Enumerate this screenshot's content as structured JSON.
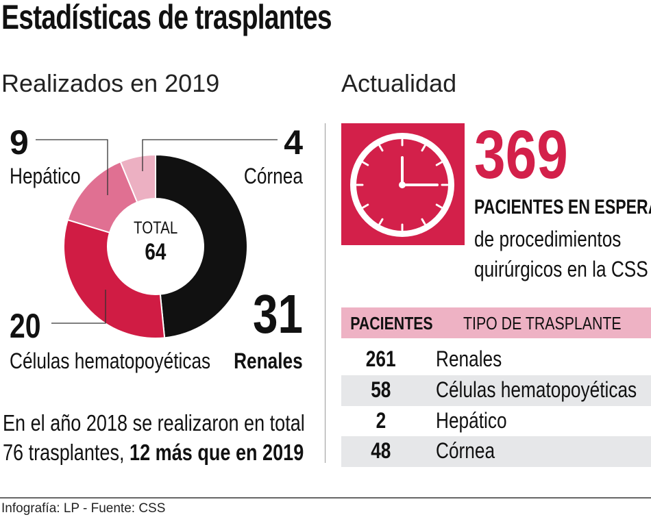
{
  "title": "Estadísticas de trasplantes",
  "left": {
    "subtitle": "Realizados en 2019",
    "total_label": "TOTAL",
    "total_value": "64",
    "note_line1": "En el año 2018 se realizaron en total",
    "note_line2_regular": "76 trasplantes, ",
    "note_line2_bold": "12 más que en 2019"
  },
  "right": {
    "subtitle": "Actualidad",
    "big_number": "369",
    "big_label": "PACIENTES EN ESPERA",
    "desc_line1": "de procedimientos",
    "desc_line2": "quirúrgicos en la CSS",
    "icon": "clock-icon",
    "table": {
      "headers": [
        "PACIENTES",
        "TIPO DE TRASPLANTE"
      ],
      "rows": [
        {
          "pacientes": "261",
          "tipo": "Renales"
        },
        {
          "pacientes": "58",
          "tipo": "Células hematopoyéticas"
        },
        {
          "pacientes": "2",
          "tipo": "Hepático"
        },
        {
          "pacientes": "48",
          "tipo": "Córnea"
        }
      ]
    }
  },
  "footer": "Infografía: LP - Fuente: CSS",
  "colors": {
    "accent": "#d3204a",
    "header_pink": "#eeb2c4",
    "row_gray": "#e6e7e9"
  },
  "chart_data": {
    "type": "pie",
    "subtype": "donut",
    "categories": [
      "Renales",
      "Células hematopoyéticas",
      "Hepático",
      "Córnea"
    ],
    "values": [
      31,
      20,
      9,
      4
    ],
    "value_labels": [
      "31",
      "20",
      "9",
      "4"
    ],
    "colors": [
      "#111111",
      "#d01c44",
      "#e07092",
      "#ecb0c2"
    ],
    "total": 64
  }
}
